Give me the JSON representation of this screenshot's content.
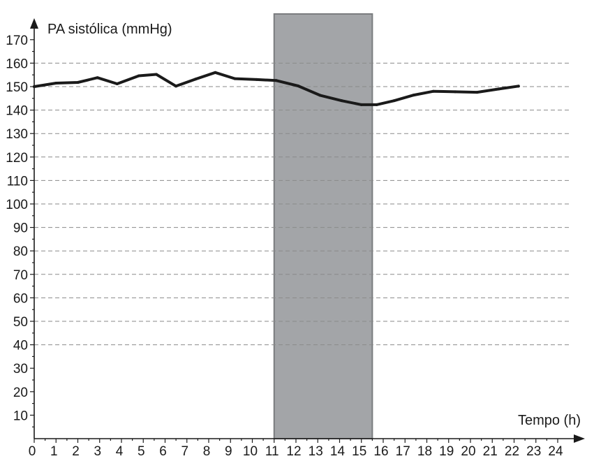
{
  "chart_data": {
    "type": "line",
    "title": "",
    "ylabel": "PA sistólica (mmHg)",
    "xlabel": "Tempo (h)",
    "xlim": [
      0,
      24
    ],
    "ylim": [
      0,
      175
    ],
    "xticks": [
      0,
      1,
      2,
      3,
      4,
      5,
      6,
      7,
      8,
      9,
      10,
      11,
      12,
      13,
      14,
      15,
      16,
      17,
      18,
      19,
      20,
      21,
      22,
      23,
      24
    ],
    "yticks": [
      10,
      20,
      30,
      40,
      50,
      60,
      70,
      80,
      90,
      100,
      110,
      120,
      130,
      140,
      150,
      160,
      170
    ],
    "gridlines": [
      40,
      50,
      60,
      70,
      80,
      90,
      100,
      110,
      120,
      130,
      140,
      150,
      160
    ],
    "grid": true,
    "shaded_region": {
      "x_start": 11,
      "x_end": 15.5,
      "color": "#a3a5a8"
    },
    "line_color": "#1a1a1a",
    "series": [
      {
        "x": [
          0,
          1,
          2,
          2.9,
          3.8,
          4.8,
          5.6,
          6.5,
          7.4,
          8.3,
          9.2,
          10.2,
          11.1,
          12.1,
          13.1,
          14.1,
          15.0,
          15.7,
          16.5,
          17.4,
          18.3,
          19.3,
          20.3,
          21.3,
          22.2
        ],
        "values": [
          150,
          151.5,
          151.8,
          153.8,
          151.2,
          154.6,
          155.2,
          150.2,
          153.2,
          156,
          153.4,
          153,
          152.6,
          150.3,
          146.3,
          144,
          142.3,
          142.3,
          144,
          146.4,
          148,
          147.8,
          147.6,
          149,
          150.2
        ]
      }
    ]
  }
}
